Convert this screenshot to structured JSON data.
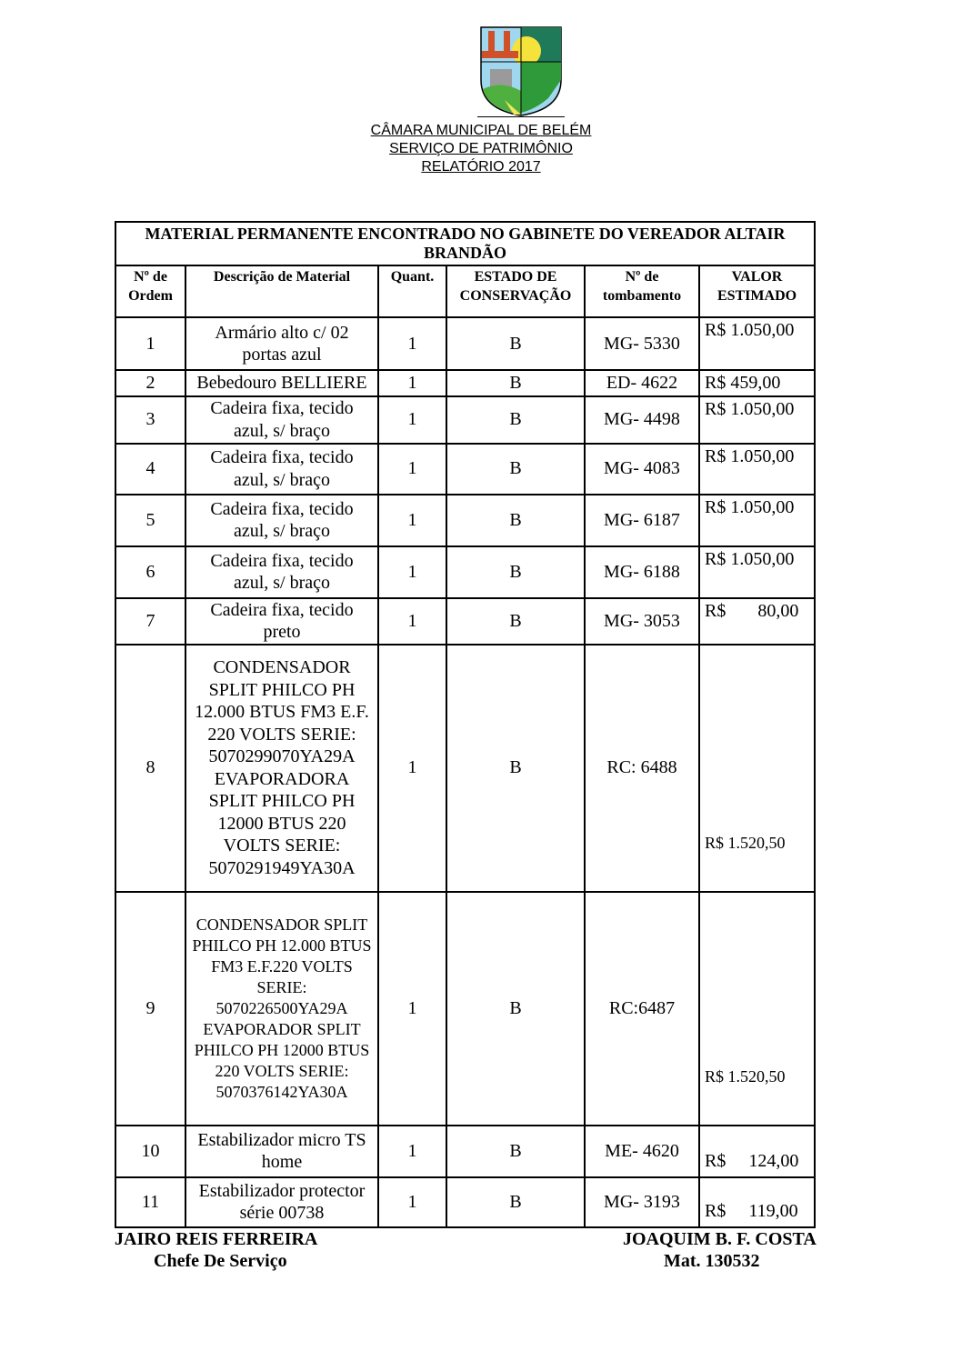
{
  "header": {
    "crest": "coat-of-arms",
    "line1": "CÂMARA MUNICIPAL DE BELÉM",
    "line2": "SERVIÇO DE PATRIMÔNIO",
    "line3": "RELATÓRIO 2017"
  },
  "table": {
    "title": "MATERIAL PERMANENTE ENCONTRADO NO GABINETE DO VEREADOR ALTAIR BRANDÃO",
    "columns": [
      "Nº de Ordem",
      "Descrição de Material",
      "Quant.",
      "ESTADO DE CONSERVAÇÃO",
      "Nº de tombamento",
      "VALOR ESTIMADO"
    ],
    "rows": [
      {
        "ordem": "1",
        "desc": "Armário alto c/ 02 portas azul",
        "quant": "1",
        "estado": "B",
        "tombamento": "MG- 5330",
        "valor": "R$ 1.050,00"
      },
      {
        "ordem": "2",
        "desc": "Bebedouro BELLIERE",
        "quant": "1",
        "estado": "B",
        "tombamento": "ED- 4622",
        "valor": "R$ 459,00"
      },
      {
        "ordem": "3",
        "desc": "Cadeira fixa, tecido azul, s/ braço",
        "quant": "1",
        "estado": "B",
        "tombamento": "MG- 4498",
        "valor": "R$ 1.050,00"
      },
      {
        "ordem": "4",
        "desc": "Cadeira fixa, tecido azul, s/ braço",
        "quant": "1",
        "estado": "B",
        "tombamento": "MG- 4083",
        "valor": "R$ 1.050,00"
      },
      {
        "ordem": "5",
        "desc": "Cadeira fixa, tecido azul, s/ braço",
        "quant": "1",
        "estado": "B",
        "tombamento": "MG- 6187",
        "valor": "R$ 1.050,00"
      },
      {
        "ordem": "6",
        "desc": "Cadeira fixa, tecido azul, s/ braço",
        "quant": "1",
        "estado": "B",
        "tombamento": "MG- 6188",
        "valor": "R$ 1.050,00"
      },
      {
        "ordem": "7",
        "desc": "Cadeira fixa, tecido preto",
        "quant": "1",
        "estado": "B",
        "tombamento": "MG- 3053",
        "valor": "R$       80,00"
      },
      {
        "ordem": "8",
        "desc": "CONDENSADOR SPLIT PHILCO PH 12.000 BTUS FM3 E.F. 220 VOLTS SERIE: 5070299070YA29A EVAPORADORA SPLIT PHILCO PH 12000 BTUS 220 VOLTS SERIE: 5070291949YA30A",
        "quant": "1",
        "estado": "B",
        "tombamento": "RC: 6488",
        "valor": "R$ 1.520,50"
      },
      {
        "ordem": "9",
        "desc": "CONDENSADOR SPLIT PHILCO PH 12.000 BTUS FM3 E.F.220 VOLTS SERIE: 5070226500YA29A EVAPORADOR SPLIT PHILCO PH 12000 BTUS 220 VOLTS SERIE: 5070376142YA30A",
        "quant": "1",
        "estado": "B",
        "tombamento": "RC:6487",
        "valor": "R$ 1.520,50"
      },
      {
        "ordem": "10",
        "desc": "Estabilizador micro TS home",
        "quant": "1",
        "estado": "B",
        "tombamento": "ME- 4620",
        "valor": "R$     124,00"
      },
      {
        "ordem": "11",
        "desc": "Estabilizador protector série 00738",
        "quant": "1",
        "estado": "B",
        "tombamento": "MG- 3193",
        "valor": "R$     119,00"
      }
    ]
  },
  "signatures": {
    "left_name": "JAIRO REIS FERREIRA",
    "left_role": "Chefe De Serviço",
    "right_name": "JOAQUIM B. F. COSTA",
    "right_role": "Mat. 130532"
  }
}
